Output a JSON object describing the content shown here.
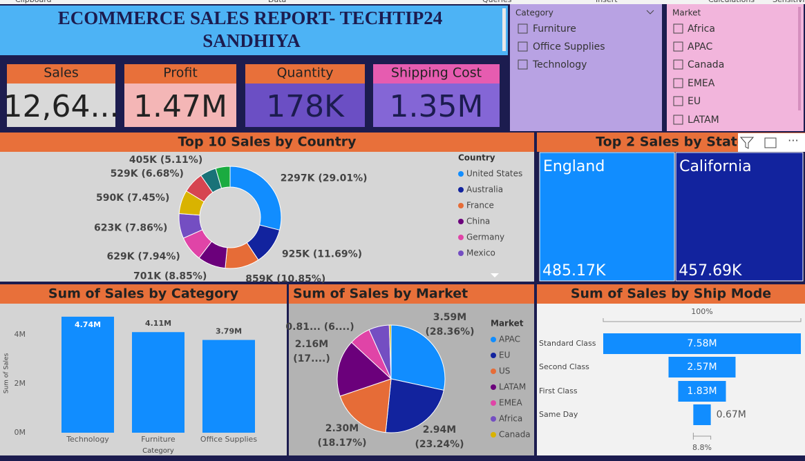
{
  "ribbon": [
    "Clipboard",
    "Data",
    "Queries",
    "Insert",
    "Calculations",
    "Sensitivi"
  ],
  "header": {
    "title_line1": "ECOMMERCE SALES REPORT- TECHTIP24",
    "title_line2": "SANDHIYA"
  },
  "kpis": [
    {
      "label": "Sales",
      "value": "12,64..."
    },
    {
      "label": "Profit",
      "value": "1.47M"
    },
    {
      "label": "Quantity",
      "value": "178K"
    },
    {
      "label": "Shipping Cost",
      "value": "1.35M"
    }
  ],
  "slicers": [
    {
      "title": "Category",
      "items": [
        "Furniture",
        "Office Supplies",
        "Technology"
      ]
    },
    {
      "title": "Market",
      "items": [
        "Africa",
        "APAC",
        "Canada",
        "EMEA",
        "EU",
        "LATAM"
      ]
    }
  ],
  "chart_data": [
    {
      "type": "donut",
      "title": "Top 10 Sales by Country",
      "legend_title": "Country",
      "categories": [
        "United States",
        "Australia",
        "France",
        "China",
        "Germany",
        "Mexico",
        null,
        null,
        null,
        null
      ],
      "values": [
        2297,
        925,
        859,
        701,
        629,
        623,
        590,
        529,
        405,
        361
      ],
      "value_labels": [
        "2297K (29.01%)",
        "925K (11.69%)",
        "859K (10.85%)",
        "701K (8.85%)",
        "629K (7.94%)",
        "623K (7.86%)",
        "590K (7.45%)",
        "529K (6.68%)",
        "405K (5.11%)",
        null
      ],
      "colors": [
        "#118dff",
        "#12239e",
        "#e66c37",
        "#6b007b",
        "#e044a7",
        "#744ec2",
        "#d9b300",
        "#d64550",
        "#197278",
        "#1aab40"
      ]
    },
    {
      "type": "treemap",
      "title": "Top 2 Sales by State",
      "categories": [
        "England",
        "California"
      ],
      "values": [
        485.17,
        457.69
      ],
      "value_labels": [
        "485.17K",
        "457.69K"
      ],
      "colors": [
        "#118dff",
        "#12239e"
      ]
    },
    {
      "type": "bar",
      "title": "Sum of Sales by Category",
      "categories": [
        "Technology",
        "Furniture",
        "Office Supplies"
      ],
      "values": [
        4.74,
        4.11,
        3.79
      ],
      "value_labels": [
        "4.74M",
        "4.11M",
        "3.79M"
      ],
      "color": "#118dff",
      "ylim": [
        0,
        4.85
      ],
      "yticks": [
        {
          "value": 0,
          "label": "0M"
        },
        {
          "value": 2,
          "label": "2M"
        },
        {
          "value": 4,
          "label": "4M"
        }
      ],
      "grid": false,
      "y_label": "Sum of Sales",
      "x_label": "Category"
    },
    {
      "type": "pie",
      "title": "Sum of Sales by Market",
      "legend_title": "Market",
      "categories": [
        "APAC",
        "EU",
        "US",
        "LATAM",
        "EMEA",
        "Africa",
        "Canada"
      ],
      "values": [
        3.59,
        2.94,
        2.3,
        2.16,
        0.81,
        0.78,
        0.07
      ],
      "value_labels": [
        [
          "3.59M",
          "(28.36%)"
        ],
        [
          "2.94M",
          "(23.24%)"
        ],
        [
          "2.30M",
          "(18.17%)"
        ],
        [
          "2.16M",
          "(17....)"
        ],
        [
          "0.81... (6....)"
        ],
        null,
        null
      ],
      "colors": [
        "#118dff",
        "#12239e",
        "#e66c37",
        "#6b007b",
        "#e044a7",
        "#744ec2",
        "#d9b300"
      ]
    },
    {
      "type": "funnel",
      "title": "Sum of Sales by Ship Mode",
      "categories": [
        "Standard Class",
        "Second Class",
        "First Class",
        "Same Day"
      ],
      "values": [
        7.58,
        2.57,
        1.83,
        0.67
      ],
      "value_labels": [
        "7.58M",
        "2.57M",
        "1.83M",
        "0.67M"
      ],
      "color": "#118dff",
      "top_label": "100%",
      "bottom_label": "8.8%"
    }
  ]
}
